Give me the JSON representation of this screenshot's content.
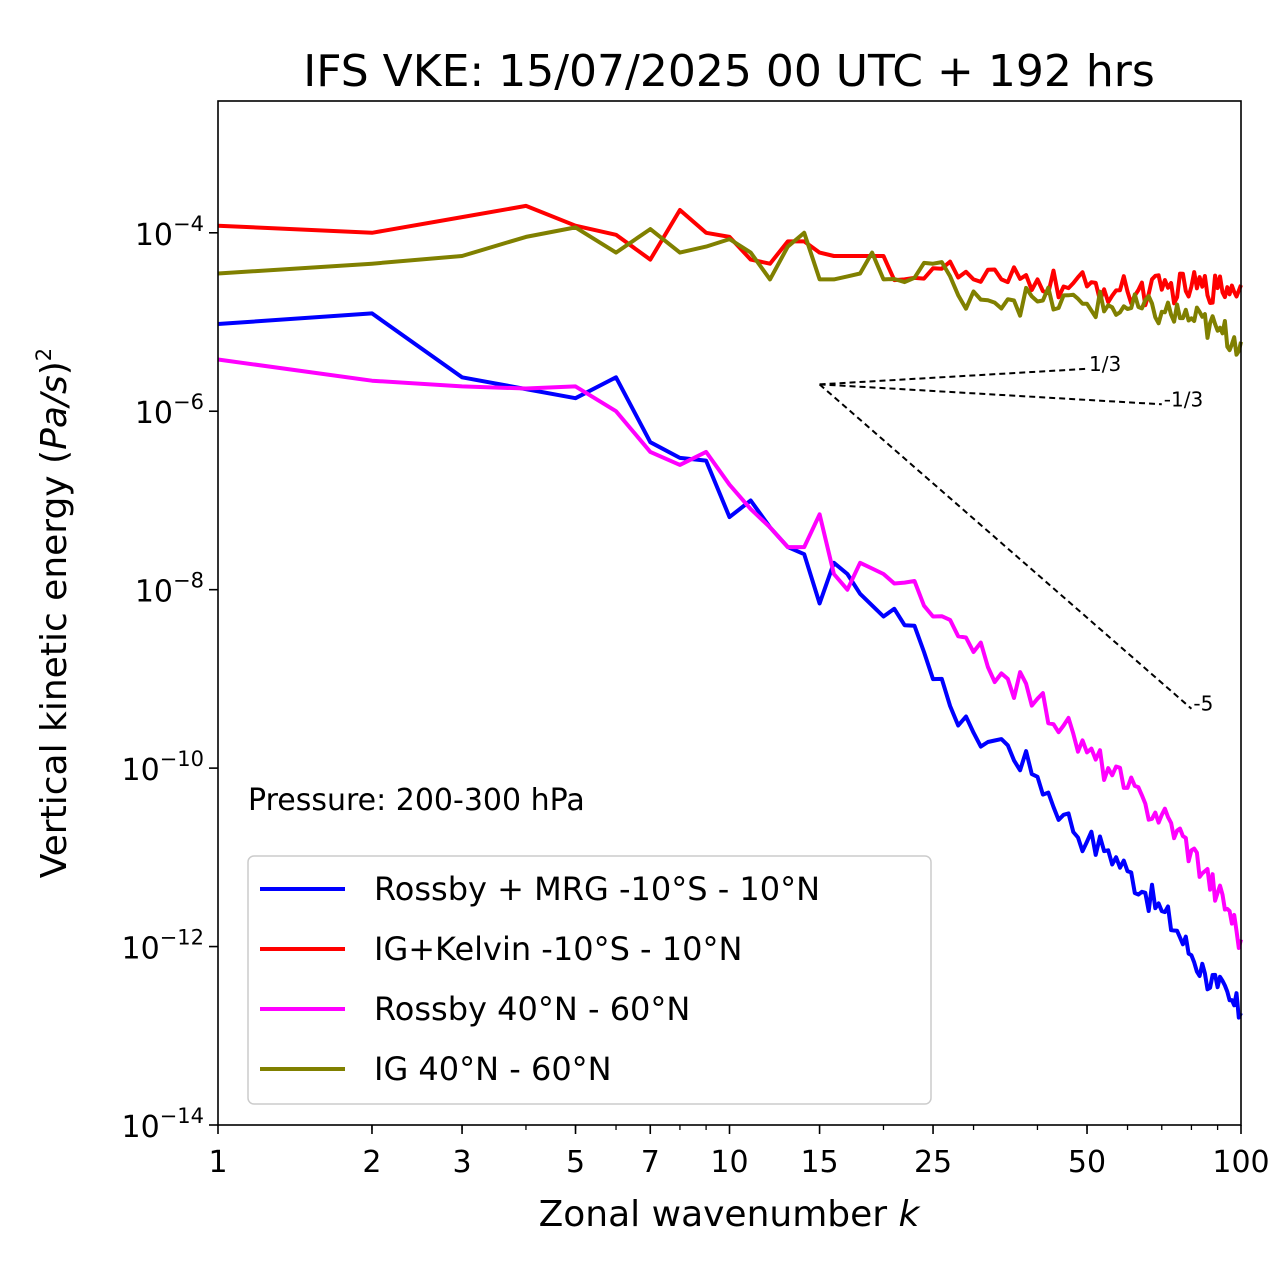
{
  "chart_data": {
    "type": "line",
    "title": "IFS VKE: 15/07/2025 00 UTC + 192 hrs",
    "xlabel": "Zonal wavenumber",
    "xlabel_var": "k",
    "ylabel": "Vertical kinetic energy",
    "ylabel_unit_inner": "Pa/s",
    "ylabel_unit_power": "2",
    "xscale": "log",
    "yscale": "log",
    "xlim": [
      1,
      100
    ],
    "ylim": [
      1e-14,
      0.003
    ],
    "x_ticks": [
      1,
      2,
      3,
      5,
      7,
      10,
      15,
      25,
      50,
      100
    ],
    "x_tick_labels": [
      "1",
      "2",
      "3",
      "5",
      "7",
      "10",
      "15",
      "25",
      "50",
      "100"
    ],
    "y_ticks": [
      {
        "value": 1e-14,
        "base": "10",
        "exp": "−14"
      },
      {
        "value": 1e-12,
        "base": "10",
        "exp": "−12"
      },
      {
        "value": 1e-10,
        "base": "10",
        "exp": "−10"
      },
      {
        "value": 1e-08,
        "base": "10",
        "exp": "−8"
      },
      {
        "value": 1e-06,
        "base": "10",
        "exp": "−6"
      },
      {
        "value": 0.0001,
        "base": "10",
        "exp": "−4"
      }
    ],
    "grid": false,
    "legend_position": "lower-left",
    "annotation": "Pressure: 200-300 hPa",
    "series": [
      {
        "name": "Rossby + MRG -10°S - 10°N",
        "color": "#0000ff",
        "anchors": [
          [
            1,
            9.5e-06
          ],
          [
            2,
            1.25e-05
          ],
          [
            3,
            2.4e-06
          ],
          [
            5,
            1.4e-06
          ],
          [
            6,
            2.4e-06
          ],
          [
            7,
            4.5e-07
          ],
          [
            8,
            3e-07
          ],
          [
            9,
            2.8e-07
          ],
          [
            10,
            6.5e-08
          ],
          [
            11,
            1e-07
          ],
          [
            12,
            5e-08
          ],
          [
            13,
            3e-08
          ],
          [
            14,
            2.5e-08
          ],
          [
            15,
            7e-09
          ],
          [
            16,
            2e-08
          ],
          [
            17,
            1.5e-08
          ],
          [
            18,
            9e-09
          ],
          [
            20,
            5e-09
          ],
          [
            22,
            4e-09
          ],
          [
            24,
            2e-09
          ],
          [
            26,
            1e-09
          ],
          [
            28,
            3e-10
          ],
          [
            30,
            2.5e-10
          ],
          [
            35,
            1.8e-10
          ],
          [
            40,
            8e-11
          ],
          [
            45,
            3e-11
          ],
          [
            50,
            1.5e-11
          ],
          [
            55,
            1.2e-11
          ],
          [
            60,
            7e-12
          ],
          [
            65,
            4e-12
          ],
          [
            70,
            2.5e-12
          ],
          [
            75,
            1.5e-12
          ],
          [
            80,
            8e-13
          ],
          [
            85,
            5e-13
          ],
          [
            90,
            3.5e-13
          ],
          [
            95,
            2.5e-13
          ],
          [
            100,
            1.8e-13
          ]
        ]
      },
      {
        "name": "IG+Kelvin -10°S - 10°N",
        "color": "#ff0000",
        "anchors": [
          [
            1,
            0.00012
          ],
          [
            2,
            0.0001
          ],
          [
            3,
            0.00015
          ],
          [
            4,
            0.0002
          ],
          [
            5,
            0.00012
          ],
          [
            6,
            9.5e-05
          ],
          [
            7,
            5e-05
          ],
          [
            8,
            0.00018
          ],
          [
            9,
            0.0001
          ],
          [
            10,
            9e-05
          ],
          [
            11,
            5e-05
          ],
          [
            12,
            4.5e-05
          ],
          [
            13,
            8e-05
          ],
          [
            14,
            8e-05
          ],
          [
            15,
            6e-05
          ],
          [
            16,
            5.5e-05
          ],
          [
            18,
            5.5e-05
          ],
          [
            20,
            5.5e-05
          ],
          [
            22,
            3e-05
          ],
          [
            25,
            4e-05
          ],
          [
            30,
            3e-05
          ],
          [
            35,
            2.8e-05
          ],
          [
            40,
            3e-05
          ],
          [
            45,
            2.5e-05
          ],
          [
            50,
            2.5e-05
          ],
          [
            60,
            2.2e-05
          ],
          [
            70,
            2.3e-05
          ],
          [
            80,
            2.5e-05
          ],
          [
            90,
            2.4e-05
          ],
          [
            100,
            2.6e-05
          ]
        ]
      },
      {
        "name": "Rossby 40°N - 60°N",
        "color": "#ff00ff",
        "anchors": [
          [
            1,
            3.8e-06
          ],
          [
            2,
            2.2e-06
          ],
          [
            3,
            1.9e-06
          ],
          [
            4,
            1.8e-06
          ],
          [
            5,
            1.9e-06
          ],
          [
            6,
            1e-06
          ],
          [
            7,
            3.5e-07
          ],
          [
            8,
            2.5e-07
          ],
          [
            9,
            3.5e-07
          ],
          [
            10,
            1.5e-07
          ],
          [
            11,
            8e-08
          ],
          [
            12,
            5e-08
          ],
          [
            13,
            3e-08
          ],
          [
            14,
            3e-08
          ],
          [
            15,
            7e-08
          ],
          [
            16,
            1.5e-08
          ],
          [
            17,
            1e-08
          ],
          [
            18,
            2e-08
          ],
          [
            20,
            1.5e-08
          ],
          [
            22,
            1.2e-08
          ],
          [
            25,
            5e-09
          ],
          [
            28,
            3e-09
          ],
          [
            30,
            2e-09
          ],
          [
            35,
            1e-09
          ],
          [
            40,
            6e-10
          ],
          [
            45,
            3e-10
          ],
          [
            50,
            1.5e-10
          ],
          [
            55,
            1e-10
          ],
          [
            60,
            6e-11
          ],
          [
            65,
            4e-11
          ],
          [
            70,
            3e-11
          ],
          [
            75,
            2e-11
          ],
          [
            80,
            1.2e-11
          ],
          [
            85,
            7e-12
          ],
          [
            90,
            4e-12
          ],
          [
            95,
            2.5e-12
          ],
          [
            100,
            1.2e-12
          ]
        ]
      },
      {
        "name": "IG 40°N - 60°N",
        "color": "#808000",
        "anchors": [
          [
            1,
            3.5e-05
          ],
          [
            2,
            4.5e-05
          ],
          [
            3,
            5.5e-05
          ],
          [
            4,
            9e-05
          ],
          [
            5,
            0.000115
          ],
          [
            6,
            6e-05
          ],
          [
            7,
            0.00011
          ],
          [
            8,
            6e-05
          ],
          [
            9,
            7e-05
          ],
          [
            10,
            8.5e-05
          ],
          [
            11,
            6e-05
          ],
          [
            12,
            3e-05
          ],
          [
            13,
            7e-05
          ],
          [
            14,
            0.0001
          ],
          [
            15,
            3e-05
          ],
          [
            16,
            3e-05
          ],
          [
            18,
            3.5e-05
          ],
          [
            19,
            6e-05
          ],
          [
            20,
            3e-05
          ],
          [
            22,
            2.8e-05
          ],
          [
            25,
            4.5e-05
          ],
          [
            28,
            2e-05
          ],
          [
            30,
            2.2e-05
          ],
          [
            35,
            1.8e-05
          ],
          [
            40,
            1.7e-05
          ],
          [
            50,
            1.6e-05
          ],
          [
            60,
            1.4e-05
          ],
          [
            70,
            1.3e-05
          ],
          [
            80,
            1.1e-05
          ],
          [
            90,
            8e-06
          ],
          [
            100,
            6e-06
          ]
        ]
      }
    ],
    "reference_slopes": [
      {
        "label": "1/3",
        "slope": 0.3333,
        "x0": 15,
        "y0": 2e-06,
        "x1": 50
      },
      {
        "label": "-1/3",
        "slope": -0.3333,
        "x0": 15,
        "y0": 2e-06,
        "x1": 70
      },
      {
        "label": "-5",
        "slope": -5,
        "x0": 15,
        "y0": 2e-06,
        "x1": 80
      }
    ]
  }
}
